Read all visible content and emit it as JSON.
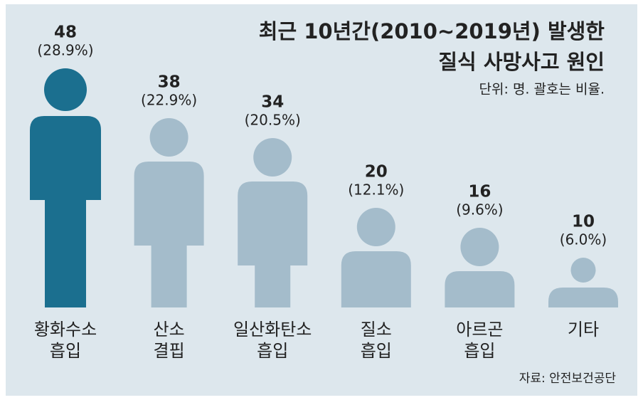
{
  "chart_data": {
    "type": "pictogram",
    "title": [
      "최근 10년간(2010~2019년) 발생한",
      "질식 사망사고 원인"
    ],
    "subtitle": "단위: 명. 괄호는 비율.",
    "source": "자료: 안전보건공단",
    "categories": [
      [
        "황화수소",
        "흡입"
      ],
      [
        "산소",
        "결핍"
      ],
      [
        "일산화탄소",
        "흡입"
      ],
      [
        "질소",
        "흡입"
      ],
      [
        "아르곤",
        "흡입"
      ],
      [
        "기타"
      ]
    ],
    "values": [
      48,
      38,
      34,
      20,
      16,
      10
    ],
    "percent_labels": [
      "(28.9%)",
      "(22.9%)",
      "(20.5%)",
      "(12.1%)",
      "(9.6%)",
      "(6.0%)"
    ],
    "colors": [
      "#1b6f8f",
      "#a4bccb",
      "#a4bccb",
      "#a4bccb",
      "#a4bccb",
      "#a4bccb"
    ],
    "value_label_color": "#2a80a8"
  }
}
